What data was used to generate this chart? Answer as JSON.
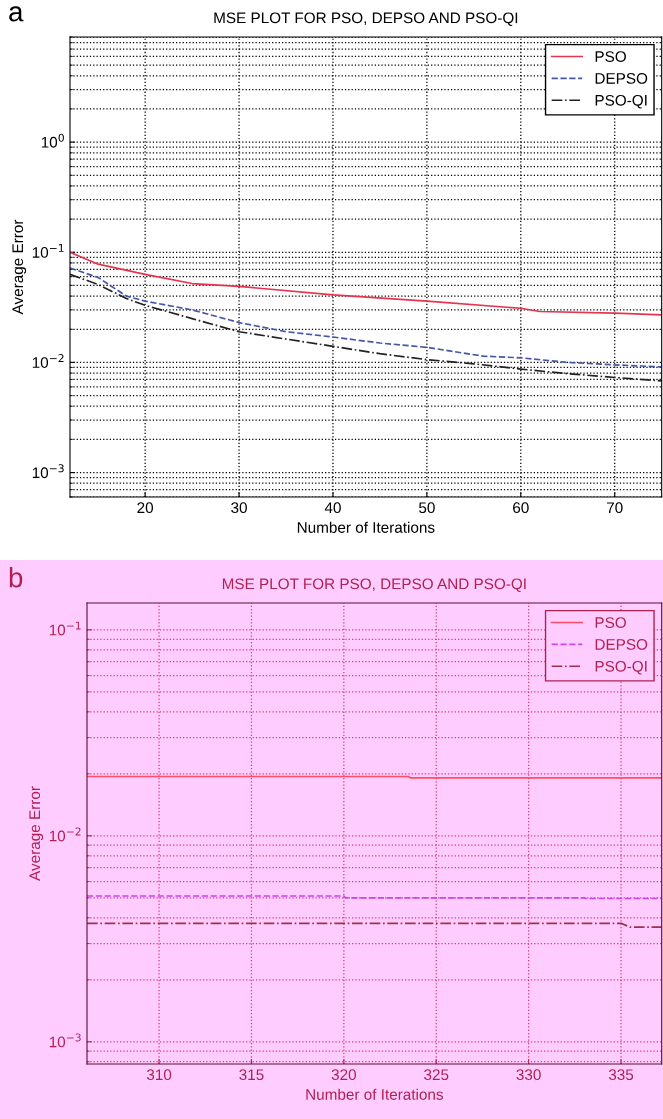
{
  "chart_data": [
    {
      "type": "line",
      "title": "MSE PLOT FOR PSO, DEPSO AND PSO-QI",
      "xlabel": "Number of Iterations",
      "ylabel": "Average Error",
      "annotations": [
        "a"
      ],
      "log": "y",
      "grid": true,
      "legend": "top right",
      "xlim": [
        12,
        75
      ],
      "xticks": [
        20,
        30,
        40,
        50,
        60,
        70
      ],
      "ylim": [
        0.0006,
        9
      ],
      "yticks": [
        {
          "value": 0.001,
          "label": "10$^{−3}$"
        },
        {
          "value": 0.01,
          "label": "10$^{−2}$"
        },
        {
          "value": 0.1,
          "label": "10$^{−1}$"
        },
        {
          "value": 1,
          "label": "10$^{0}$"
        }
      ],
      "series": [
        {
          "name": "PSO",
          "color": "#e8334f",
          "line_style": "solid",
          "x": [
            12,
            15,
            20,
            25,
            30,
            40,
            50,
            60,
            62,
            70,
            75
          ],
          "values": [
            0.1,
            0.078,
            0.063,
            0.052,
            0.049,
            0.041,
            0.036,
            0.031,
            0.029,
            0.028,
            0.027
          ]
        },
        {
          "name": "DEPSO",
          "color": "#4455aa",
          "line_style": "dashed",
          "x": [
            12,
            15,
            18,
            20,
            25,
            30,
            35,
            40,
            45,
            50,
            56,
            60,
            65,
            70,
            75
          ],
          "values": [
            0.072,
            0.059,
            0.04,
            0.036,
            0.03,
            0.023,
            0.019,
            0.017,
            0.015,
            0.0137,
            0.0114,
            0.011,
            0.01,
            0.0095,
            0.0091
          ]
        },
        {
          "name": "PSO-QI",
          "color": "#222222",
          "line_style": "dashdot",
          "x": [
            12,
            15,
            18,
            20,
            25,
            30,
            35,
            40,
            45,
            50,
            55,
            60,
            65,
            70,
            75
          ],
          "values": [
            0.063,
            0.051,
            0.038,
            0.033,
            0.025,
            0.019,
            0.0163,
            0.014,
            0.012,
            0.0106,
            0.0097,
            0.0087,
            0.0079,
            0.0073,
            0.0068
          ]
        }
      ]
    },
    {
      "type": "line",
      "title": "MSE PLOT FOR PSO, DEPSO AND PSO-QI",
      "xlabel": "Number of Iterations",
      "ylabel": "Average Error",
      "annotations": [
        "b"
      ],
      "log": "y",
      "grid": true,
      "legend": "top right",
      "xlim": [
        306.1,
        337.2
      ],
      "xticks": [
        310,
        315,
        320,
        325,
        330,
        335
      ],
      "ylim": [
        0.00078,
        0.135
      ],
      "yticks": [
        {
          "value": 0.001,
          "label": "10$^{−3}$"
        },
        {
          "value": 0.01,
          "label": "10$^{−2}$"
        },
        {
          "value": 0.1,
          "label": "10$^{−1}$"
        }
      ],
      "series": [
        {
          "name": "PSO",
          "color": "#ff4d66",
          "line_style": "solid",
          "x": [
            306.1,
            323.5,
            323.6,
            337.2
          ],
          "values": [
            0.0194,
            0.0194,
            0.0191,
            0.0191
          ]
        },
        {
          "name": "DEPSO",
          "color": "#cc44ee",
          "line_style": "dashed",
          "x": [
            306.1,
            320,
            320.1,
            333,
            333.1,
            337.2
          ],
          "values": [
            0.0051,
            0.0051,
            0.005,
            0.005,
            0.00496,
            0.00496
          ]
        },
        {
          "name": "PSO-QI",
          "color": "#a0304a",
          "line_style": "dashdot",
          "x": [
            306.1,
            335,
            335.5,
            337.2
          ],
          "values": [
            0.00376,
            0.00376,
            0.0036,
            0.0036
          ]
        }
      ]
    }
  ]
}
